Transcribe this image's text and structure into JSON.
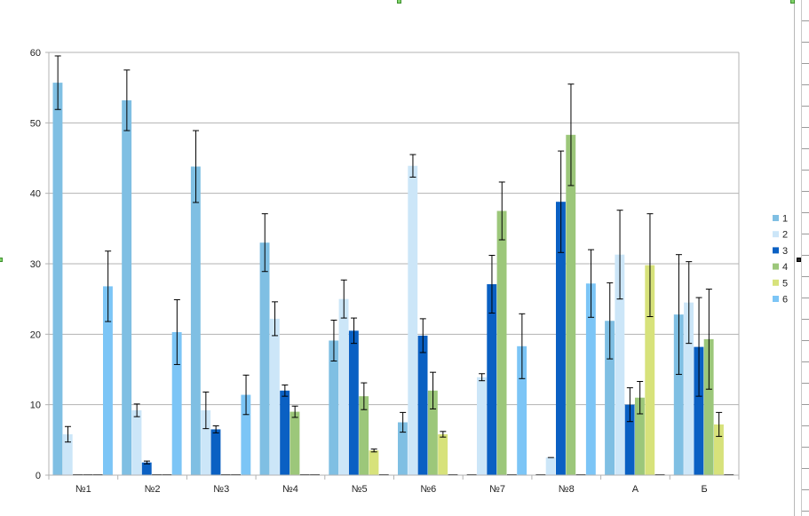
{
  "chart_data": {
    "type": "bar",
    "categories": [
      "№1",
      "№2",
      "№3",
      "№4",
      "№5",
      "№6",
      "№7",
      "№8",
      "А",
      "Б"
    ],
    "ylim": [
      0,
      60
    ],
    "yticks": [
      "0",
      "10",
      "20",
      "30",
      "40",
      "50",
      "60"
    ],
    "grid": true,
    "error_bars": true,
    "legend_position": "right",
    "series": [
      {
        "name": "1",
        "color": "#7fbfe3",
        "values": [
          55.7,
          53.2,
          43.8,
          33.0,
          19.1,
          7.5,
          0,
          0,
          21.9,
          22.8
        ],
        "errors": [
          3.8,
          4.3,
          5.1,
          4.1,
          2.9,
          1.4,
          0,
          0,
          5.4,
          8.5
        ]
      },
      {
        "name": "2",
        "color": "#cce6f8",
        "values": [
          5.8,
          9.2,
          9.2,
          22.2,
          25.0,
          43.9,
          13.9,
          2.5,
          31.3,
          24.5
        ],
        "errors": [
          1.1,
          0.9,
          2.6,
          2.4,
          2.7,
          1.6,
          0.5,
          0,
          6.3,
          5.8
        ]
      },
      {
        "name": "3",
        "color": "#0a60c3",
        "values": [
          0,
          1.8,
          6.5,
          12.0,
          20.5,
          19.8,
          27.1,
          38.8,
          10.0,
          18.2
        ],
        "errors": [
          0,
          0.2,
          0.5,
          0.8,
          1.8,
          2.4,
          4.1,
          7.2,
          2.4,
          7.0
        ]
      },
      {
        "name": "4",
        "color": "#9cc77a",
        "values": [
          0,
          0,
          0,
          9.0,
          11.2,
          12.0,
          37.5,
          48.3,
          11.0,
          19.3
        ],
        "errors": [
          0,
          0,
          0,
          0.8,
          1.9,
          2.6,
          4.1,
          7.2,
          2.3,
          7.1
        ]
      },
      {
        "name": "5",
        "color": "#d7e27b",
        "values": [
          0,
          0,
          0,
          0,
          3.5,
          5.8,
          0,
          0,
          29.8,
          7.2
        ],
        "errors": [
          0,
          0,
          0,
          0,
          0.2,
          0.4,
          0,
          0,
          7.3,
          1.7
        ]
      },
      {
        "name": "6",
        "color": "#7cc5f6",
        "values": [
          26.8,
          20.3,
          11.4,
          0,
          0,
          0,
          18.3,
          27.2,
          0,
          0
        ],
        "errors": [
          5.0,
          4.6,
          2.8,
          0,
          0,
          0,
          4.6,
          4.8,
          0,
          0
        ]
      }
    ]
  }
}
